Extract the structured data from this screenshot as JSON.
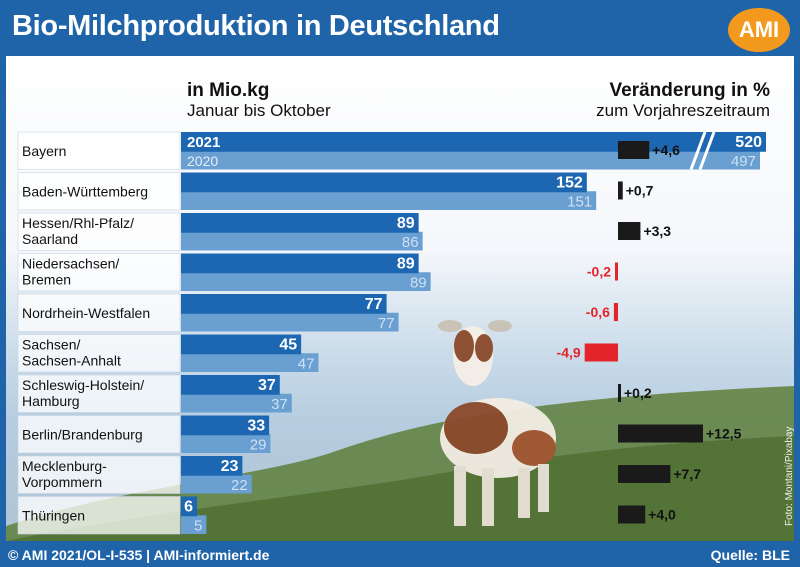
{
  "title": "Bio-Milchproduktion in Deutschland",
  "logo": "AMI",
  "footer_left": "© AMI 2021/OL-I-535 | AMI-informiert.de",
  "footer_right": "Quelle: BLE",
  "photo_credit": "Foto: Montani/Pixabay",
  "colors": {
    "frame": "#1f63a9",
    "bar_2021": "#1d66b1",
    "bar_2020": "#6a9fd2",
    "positive": "#1a1a1a",
    "negative": "#e3242b"
  },
  "chart_data": {
    "type": "bar",
    "orientation": "horizontal",
    "left_header_bold": "in Mio.kg",
    "left_header_sub": "Januar bis Oktober",
    "right_header_bold": "Veränderung in %",
    "right_header_sub": "zum Vorjahreszeitraum",
    "series_names": [
      "2021",
      "2020"
    ],
    "axis_break": true,
    "categories": [
      "Bayern",
      "Baden-Württemberg",
      "Hessen/Rhl-Pfalz/\nSaarland",
      "Niedersachsen/\nBremen",
      "Nordrhein-Westfalen",
      "Sachsen/\nSachsen-Anhalt",
      "Schleswig-Holstein/\nHamburg",
      "Berlin/Brandenburg",
      "Mecklenburg-\nVorpommern",
      "Thüringen"
    ],
    "series": [
      {
        "name": "2021",
        "values": [
          520,
          152,
          89,
          89,
          77,
          45,
          37,
          33,
          23,
          6
        ]
      },
      {
        "name": "2020",
        "values": [
          497,
          151,
          86,
          89,
          77,
          47,
          37,
          29,
          22,
          5
        ]
      }
    ],
    "change_percent": [
      4.6,
      0.7,
      3.3,
      -0.2,
      -0.6,
      -4.9,
      0.2,
      12.5,
      7.7,
      4.0
    ],
    "change_labels": [
      "+4,6",
      "+0,7",
      "+3,3",
      "-0,2",
      "-0,6",
      "-4,9",
      "+0,2",
      "+12,5",
      "+7,7",
      "+4,0"
    ]
  }
}
